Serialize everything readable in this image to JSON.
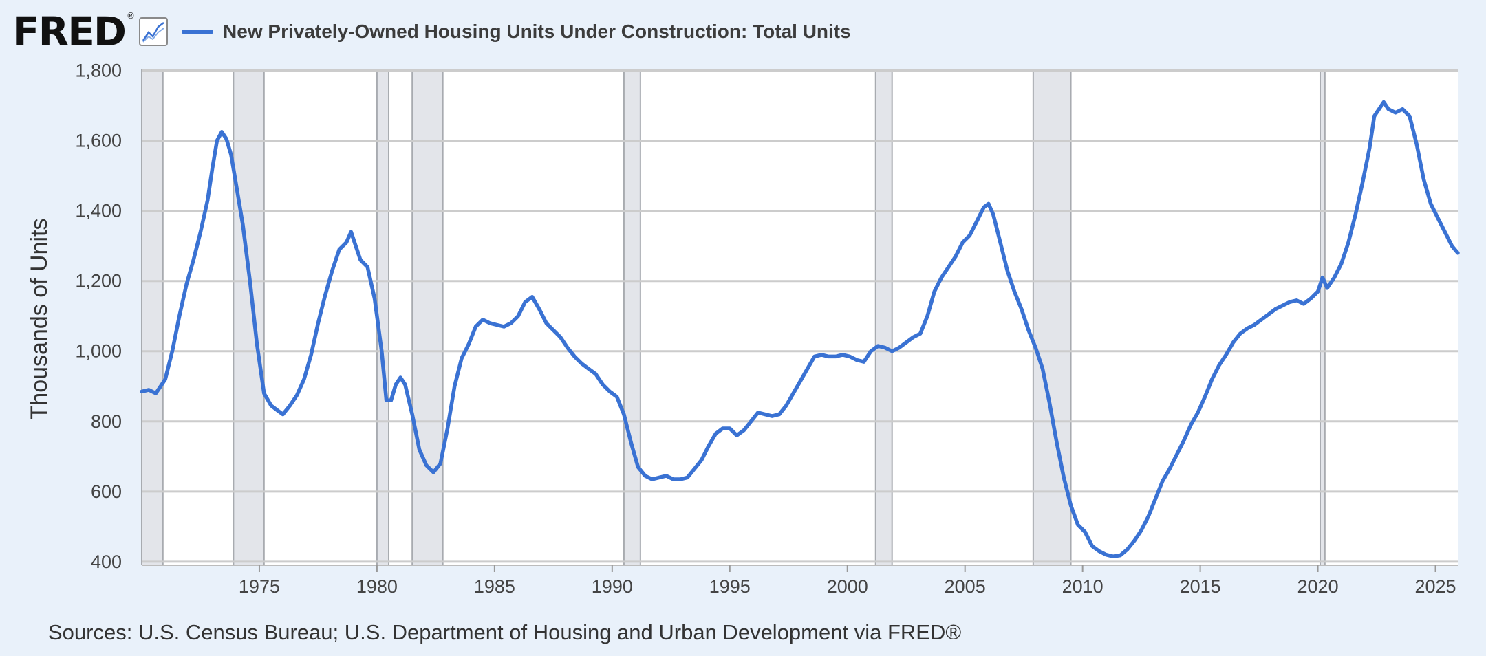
{
  "header": {
    "logo_text": "FRED",
    "logo_mark": "®",
    "icon": "line-graph-icon",
    "series_title": "New Privately-Owned Housing Units Under Construction: Total Units"
  },
  "footer": {
    "sources": "Sources: U.S. Census Bureau; U.S. Department of Housing and Urban Development via FRED®"
  },
  "colors": {
    "series": "#3a72d3",
    "recession_band": "#e3e5ea",
    "plot_bg": "#ffffff",
    "page_bg": "#e9f1fa",
    "grid": "#cccccc"
  },
  "chart_data": {
    "type": "line",
    "title": "New Privately-Owned Housing Units Under Construction: Total Units",
    "xlabel": "",
    "ylabel": "Thousands of Units",
    "xlim": [
      1970.0,
      2025.95
    ],
    "ylim": [
      390,
      1805
    ],
    "x_ticks": [
      1975,
      1980,
      1985,
      1990,
      1995,
      2000,
      2005,
      2010,
      2015,
      2020,
      2025
    ],
    "y_ticks": [
      400,
      600,
      800,
      1000,
      1200,
      1400,
      1600,
      1800
    ],
    "grid": true,
    "legend": "top-left",
    "recessions": [
      [
        1970.0,
        1970.9
      ],
      [
        1973.9,
        1975.2
      ],
      [
        1980.0,
        1980.5
      ],
      [
        1981.5,
        1982.8
      ],
      [
        1990.5,
        1991.2
      ],
      [
        2001.2,
        2001.9
      ],
      [
        2007.9,
        2009.5
      ],
      [
        2020.1,
        2020.3
      ]
    ],
    "series": [
      {
        "name": "New Privately-Owned Housing Units Under Construction: Total Units",
        "points": [
          [
            1970.0,
            885
          ],
          [
            1970.3,
            890
          ],
          [
            1970.6,
            880
          ],
          [
            1970.8,
            900
          ],
          [
            1971.0,
            920
          ],
          [
            1971.3,
            1000
          ],
          [
            1971.6,
            1100
          ],
          [
            1971.9,
            1190
          ],
          [
            1972.2,
            1260
          ],
          [
            1972.5,
            1340
          ],
          [
            1972.8,
            1430
          ],
          [
            1973.0,
            1520
          ],
          [
            1973.2,
            1600
          ],
          [
            1973.4,
            1625
          ],
          [
            1973.6,
            1605
          ],
          [
            1973.8,
            1560
          ],
          [
            1974.0,
            1480
          ],
          [
            1974.3,
            1360
          ],
          [
            1974.6,
            1200
          ],
          [
            1974.9,
            1020
          ],
          [
            1975.2,
            880
          ],
          [
            1975.5,
            845
          ],
          [
            1975.8,
            830
          ],
          [
            1976.0,
            820
          ],
          [
            1976.3,
            845
          ],
          [
            1976.6,
            875
          ],
          [
            1976.9,
            920
          ],
          [
            1977.2,
            990
          ],
          [
            1977.5,
            1080
          ],
          [
            1977.8,
            1160
          ],
          [
            1978.1,
            1230
          ],
          [
            1978.4,
            1290
          ],
          [
            1978.7,
            1310
          ],
          [
            1978.9,
            1340
          ],
          [
            1979.1,
            1300
          ],
          [
            1979.3,
            1260
          ],
          [
            1979.6,
            1240
          ],
          [
            1979.9,
            1150
          ],
          [
            1980.2,
            1000
          ],
          [
            1980.4,
            860
          ],
          [
            1980.6,
            860
          ],
          [
            1980.8,
            905
          ],
          [
            1981.0,
            925
          ],
          [
            1981.2,
            905
          ],
          [
            1981.5,
            820
          ],
          [
            1981.8,
            720
          ],
          [
            1982.1,
            675
          ],
          [
            1982.4,
            655
          ],
          [
            1982.7,
            680
          ],
          [
            1983.0,
            780
          ],
          [
            1983.3,
            900
          ],
          [
            1983.6,
            980
          ],
          [
            1983.9,
            1020
          ],
          [
            1984.2,
            1070
          ],
          [
            1984.5,
            1090
          ],
          [
            1984.8,
            1080
          ],
          [
            1985.1,
            1075
          ],
          [
            1985.4,
            1070
          ],
          [
            1985.7,
            1080
          ],
          [
            1986.0,
            1100
          ],
          [
            1986.3,
            1140
          ],
          [
            1986.6,
            1155
          ],
          [
            1986.9,
            1120
          ],
          [
            1987.2,
            1080
          ],
          [
            1987.5,
            1060
          ],
          [
            1987.8,
            1040
          ],
          [
            1988.1,
            1010
          ],
          [
            1988.4,
            985
          ],
          [
            1988.7,
            965
          ],
          [
            1989.0,
            950
          ],
          [
            1989.3,
            935
          ],
          [
            1989.6,
            905
          ],
          [
            1989.9,
            885
          ],
          [
            1990.2,
            870
          ],
          [
            1990.5,
            820
          ],
          [
            1990.8,
            740
          ],
          [
            1991.1,
            670
          ],
          [
            1991.4,
            645
          ],
          [
            1991.7,
            635
          ],
          [
            1992.0,
            640
          ],
          [
            1992.3,
            645
          ],
          [
            1992.6,
            635
          ],
          [
            1992.9,
            635
          ],
          [
            1993.2,
            640
          ],
          [
            1993.5,
            665
          ],
          [
            1993.8,
            690
          ],
          [
            1994.1,
            730
          ],
          [
            1994.4,
            765
          ],
          [
            1994.7,
            780
          ],
          [
            1995.0,
            780
          ],
          [
            1995.3,
            760
          ],
          [
            1995.6,
            775
          ],
          [
            1995.9,
            800
          ],
          [
            1996.2,
            825
          ],
          [
            1996.5,
            820
          ],
          [
            1996.8,
            815
          ],
          [
            1997.1,
            820
          ],
          [
            1997.4,
            845
          ],
          [
            1997.7,
            880
          ],
          [
            1998.0,
            915
          ],
          [
            1998.3,
            950
          ],
          [
            1998.6,
            985
          ],
          [
            1998.9,
            990
          ],
          [
            1999.2,
            985
          ],
          [
            1999.5,
            985
          ],
          [
            1999.8,
            990
          ],
          [
            2000.1,
            985
          ],
          [
            2000.4,
            975
          ],
          [
            2000.7,
            970
          ],
          [
            2001.0,
            1000
          ],
          [
            2001.3,
            1015
          ],
          [
            2001.6,
            1010
          ],
          [
            2001.9,
            1000
          ],
          [
            2002.2,
            1010
          ],
          [
            2002.5,
            1025
          ],
          [
            2002.8,
            1040
          ],
          [
            2003.1,
            1050
          ],
          [
            2003.4,
            1100
          ],
          [
            2003.7,
            1170
          ],
          [
            2004.0,
            1210
          ],
          [
            2004.3,
            1240
          ],
          [
            2004.6,
            1270
          ],
          [
            2004.9,
            1310
          ],
          [
            2005.2,
            1330
          ],
          [
            2005.5,
            1370
          ],
          [
            2005.8,
            1410
          ],
          [
            2006.0,
            1420
          ],
          [
            2006.2,
            1390
          ],
          [
            2006.5,
            1310
          ],
          [
            2006.8,
            1230
          ],
          [
            2007.1,
            1170
          ],
          [
            2007.4,
            1120
          ],
          [
            2007.7,
            1060
          ],
          [
            2008.0,
            1010
          ],
          [
            2008.3,
            950
          ],
          [
            2008.6,
            850
          ],
          [
            2008.9,
            740
          ],
          [
            2009.2,
            640
          ],
          [
            2009.5,
            560
          ],
          [
            2009.8,
            505
          ],
          [
            2010.1,
            485
          ],
          [
            2010.4,
            445
          ],
          [
            2010.7,
            430
          ],
          [
            2011.0,
            420
          ],
          [
            2011.3,
            415
          ],
          [
            2011.6,
            418
          ],
          [
            2011.9,
            435
          ],
          [
            2012.2,
            460
          ],
          [
            2012.5,
            490
          ],
          [
            2012.8,
            530
          ],
          [
            2013.1,
            580
          ],
          [
            2013.4,
            630
          ],
          [
            2013.7,
            665
          ],
          [
            2014.0,
            705
          ],
          [
            2014.3,
            745
          ],
          [
            2014.6,
            790
          ],
          [
            2014.9,
            825
          ],
          [
            2015.2,
            870
          ],
          [
            2015.5,
            920
          ],
          [
            2015.8,
            960
          ],
          [
            2016.1,
            990
          ],
          [
            2016.4,
            1025
          ],
          [
            2016.7,
            1050
          ],
          [
            2017.0,
            1065
          ],
          [
            2017.3,
            1075
          ],
          [
            2017.6,
            1090
          ],
          [
            2017.9,
            1105
          ],
          [
            2018.2,
            1120
          ],
          [
            2018.5,
            1130
          ],
          [
            2018.8,
            1140
          ],
          [
            2019.1,
            1145
          ],
          [
            2019.4,
            1135
          ],
          [
            2019.7,
            1150
          ],
          [
            2020.0,
            1170
          ],
          [
            2020.2,
            1210
          ],
          [
            2020.4,
            1180
          ],
          [
            2020.7,
            1210
          ],
          [
            2021.0,
            1250
          ],
          [
            2021.3,
            1310
          ],
          [
            2021.6,
            1390
          ],
          [
            2021.9,
            1480
          ],
          [
            2022.2,
            1580
          ],
          [
            2022.4,
            1670
          ],
          [
            2022.6,
            1690
          ],
          [
            2022.8,
            1710
          ],
          [
            2023.0,
            1690
          ],
          [
            2023.3,
            1680
          ],
          [
            2023.6,
            1690
          ],
          [
            2023.9,
            1670
          ],
          [
            2024.2,
            1590
          ],
          [
            2024.5,
            1490
          ],
          [
            2024.8,
            1420
          ],
          [
            2025.1,
            1380
          ],
          [
            2025.4,
            1340
          ],
          [
            2025.7,
            1300
          ],
          [
            2025.95,
            1280
          ]
        ]
      }
    ]
  }
}
